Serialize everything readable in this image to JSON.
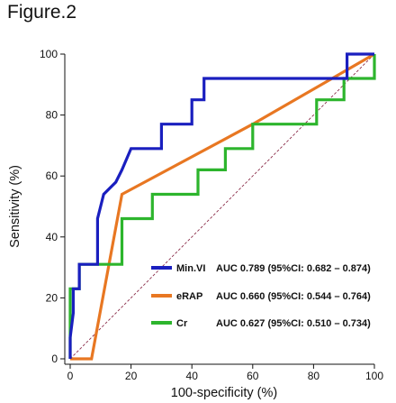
{
  "figure_label": "Figure.2",
  "chart_data": {
    "type": "line",
    "title": "",
    "xlabel": "100-specificity (%)",
    "ylabel": "Sensitivity (%)",
    "xlim": [
      0,
      100
    ],
    "ylim": [
      0,
      100
    ],
    "xticks": [
      0,
      20,
      40,
      60,
      80,
      100
    ],
    "yticks": [
      0,
      20,
      40,
      60,
      80,
      100
    ],
    "legend_position": "bottom-right",
    "reference_line": {
      "x": [
        0,
        100
      ],
      "y": [
        0,
        100
      ],
      "color": "#8b2e4a",
      "style": "dashed"
    },
    "series": [
      {
        "name": "Min.VI",
        "auc_text": "AUC  0.789 (95%CI: 0.682 – 0.874)",
        "color": "#1a1fbf",
        "x": [
          0,
          0,
          1,
          1,
          3,
          3,
          9,
          9,
          11,
          11,
          15,
          17,
          20,
          20,
          30,
          30,
          40,
          40,
          44,
          44,
          91,
          91,
          100
        ],
        "y": [
          0,
          7,
          15,
          23,
          23,
          31,
          31,
          46,
          54,
          54,
          58,
          62,
          69,
          69,
          69,
          77,
          77,
          85,
          85,
          92,
          92,
          100,
          100
        ]
      },
      {
        "name": "eRAP",
        "auc_text": "AUC  0.660 (95%CI: 0.544 – 0.764)",
        "color": "#e87722",
        "x": [
          0,
          7,
          17,
          60,
          100
        ],
        "y": [
          0,
          0,
          54,
          77,
          100
        ]
      },
      {
        "name": "Cr",
        "auc_text": "AUC  0.627 (95%CI: 0.510 – 0.734)",
        "color": "#2db52d",
        "x": [
          0,
          0,
          3,
          3,
          11,
          11,
          17,
          17,
          27,
          27,
          42,
          42,
          44,
          44,
          51,
          51,
          60,
          60,
          78,
          78,
          81,
          81,
          90,
          90,
          100,
          100
        ],
        "y": [
          0,
          23,
          23,
          31,
          31,
          31,
          31,
          46,
          46,
          54,
          54,
          62,
          62,
          62,
          62,
          69,
          69,
          77,
          77,
          77,
          77,
          85,
          85,
          92,
          92,
          100
        ]
      }
    ]
  }
}
